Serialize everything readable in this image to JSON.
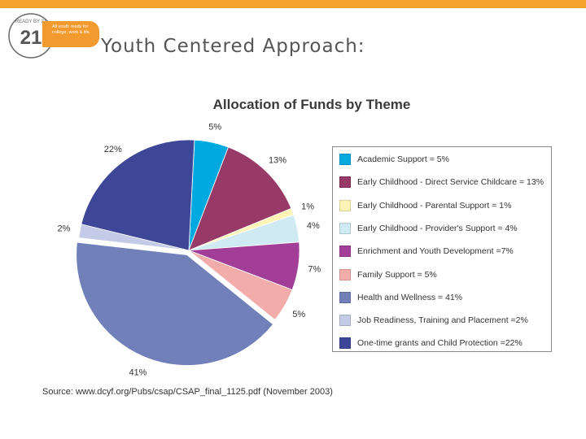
{
  "header": {
    "logo_text": "READY BY 21",
    "logo_tagline": "All youth ready for college, work & life.",
    "title": "Youth Centered Approach:"
  },
  "colors": {
    "topbar": "#f5a32b",
    "logo_orange": "#f29a2e"
  },
  "chart_data": {
    "type": "pie",
    "title": "Allocation of Funds by Theme",
    "slices": [
      {
        "label": "Academic Support  = 5%",
        "value": 5,
        "pct_label": "5%",
        "color": "#00a9e0"
      },
      {
        "label": "Early Childhood - Direct Service Childcare  = 13%",
        "value": 13,
        "pct_label": "13%",
        "color": "#973a67"
      },
      {
        "label": "Early Childhood - Parental Support = 1%",
        "value": 1,
        "pct_label": "1%",
        "color": "#fff4b5"
      },
      {
        "label": "Early Childhood - Provider's Support = 4%",
        "value": 4,
        "pct_label": "4%",
        "color": "#cfeaf3"
      },
      {
        "label": "Enrichment and Youth Development =7%",
        "value": 7,
        "pct_label": "7%",
        "color": "#a23d98"
      },
      {
        "label": "Family Support = 5%",
        "value": 5,
        "pct_label": "5%",
        "color": "#f2adab"
      },
      {
        "label": "Health and Wellness = 41%",
        "value": 41,
        "pct_label": "41%",
        "color": "#7180b9"
      },
      {
        "label": "Job Readiness, Training and Placement =2%",
        "value": 2,
        "pct_label": "2%",
        "color": "#c4cbe6"
      },
      {
        "label": "One-time grants and Child Protection =22%",
        "value": 22,
        "pct_label": "22%",
        "color": "#3e4797"
      }
    ],
    "legend_position": "right"
  },
  "source": "Source: www.dcyf.org/Pubs/csap/CSAP_final_1125.pdf (November 2003)"
}
